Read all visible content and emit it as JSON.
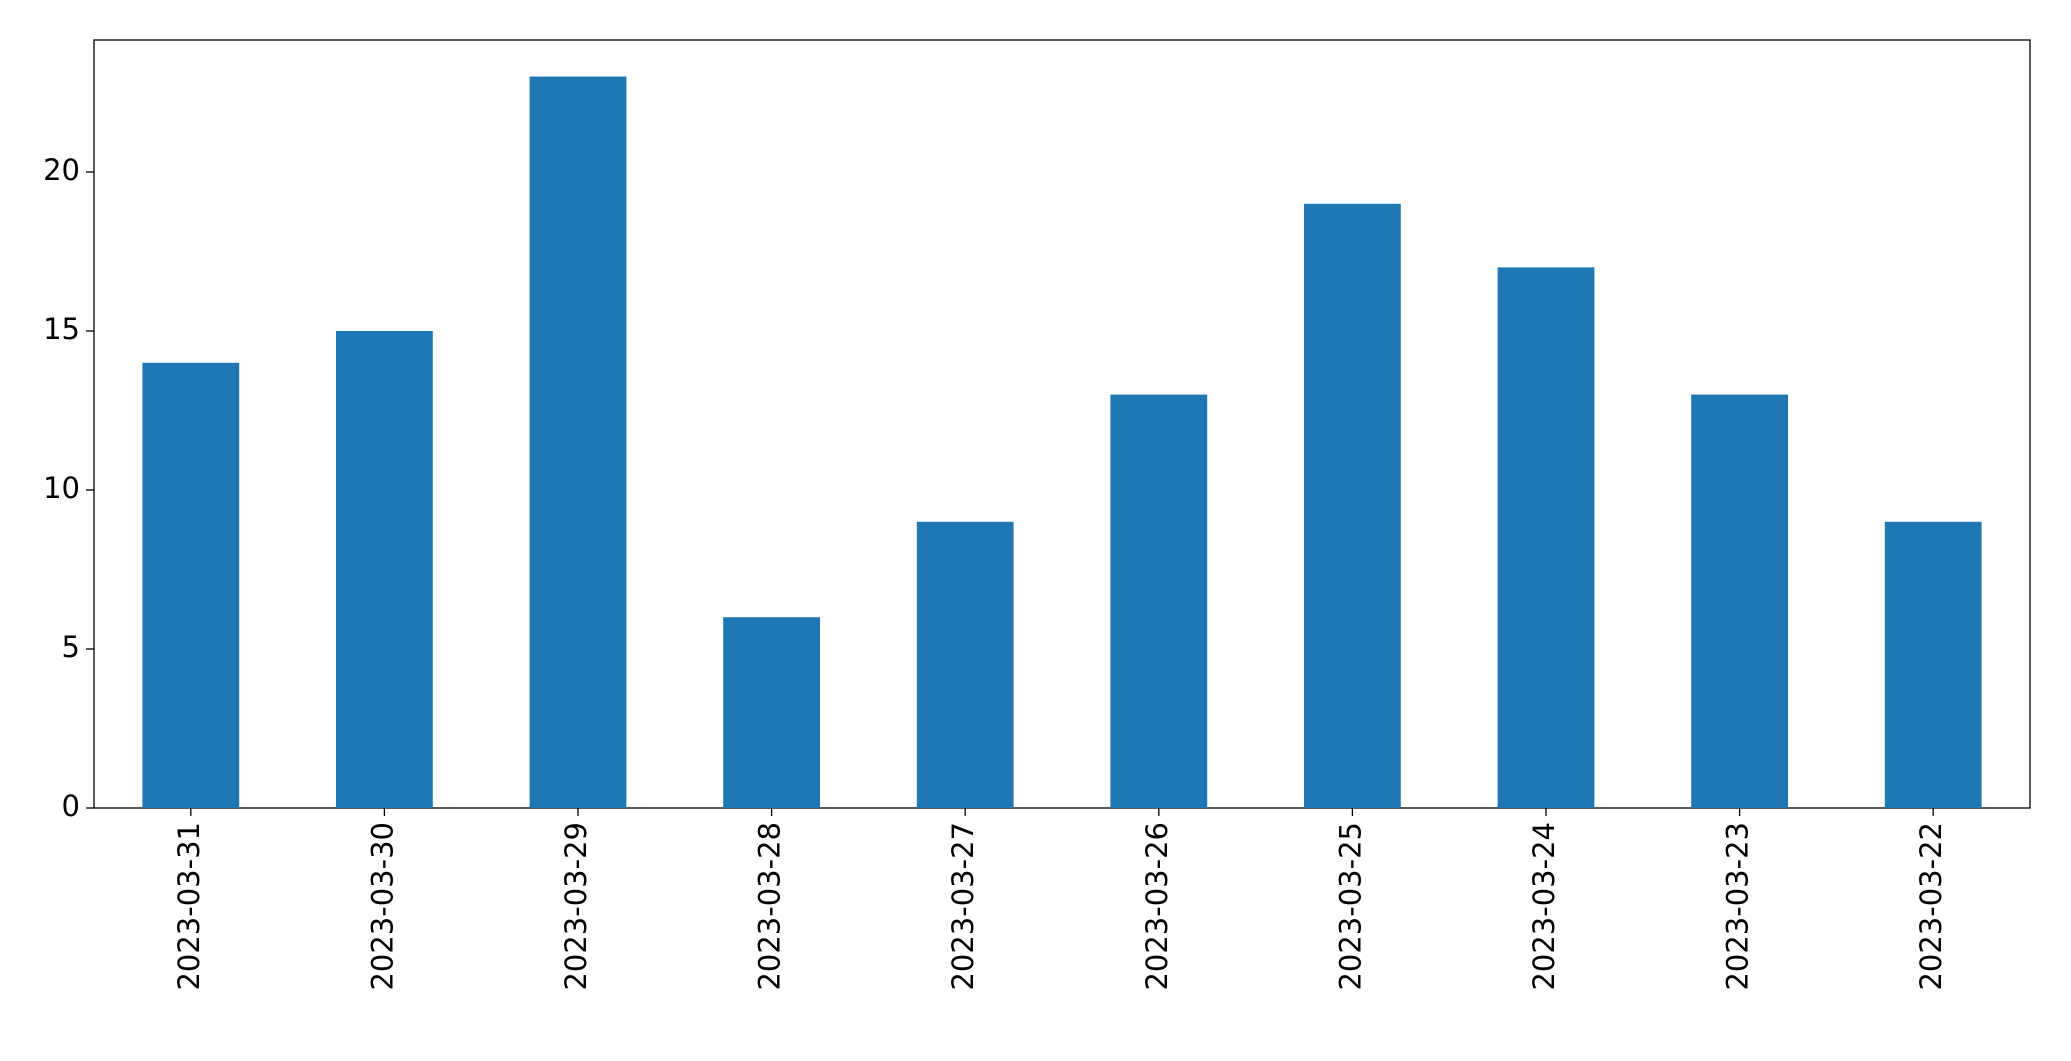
{
  "chart_data": {
    "type": "bar",
    "categories": [
      "2023-03-31",
      "2023-03-30",
      "2023-03-29",
      "2023-03-28",
      "2023-03-27",
      "2023-03-26",
      "2023-03-25",
      "2023-03-24",
      "2023-03-23",
      "2023-03-22"
    ],
    "values": [
      14,
      15,
      23,
      6,
      9,
      13,
      19,
      17,
      13,
      9
    ],
    "color": "#1f77b4",
    "ylim": [
      0,
      24.15
    ],
    "yticks": [
      0,
      5,
      10,
      15,
      20
    ],
    "grid": false
  }
}
